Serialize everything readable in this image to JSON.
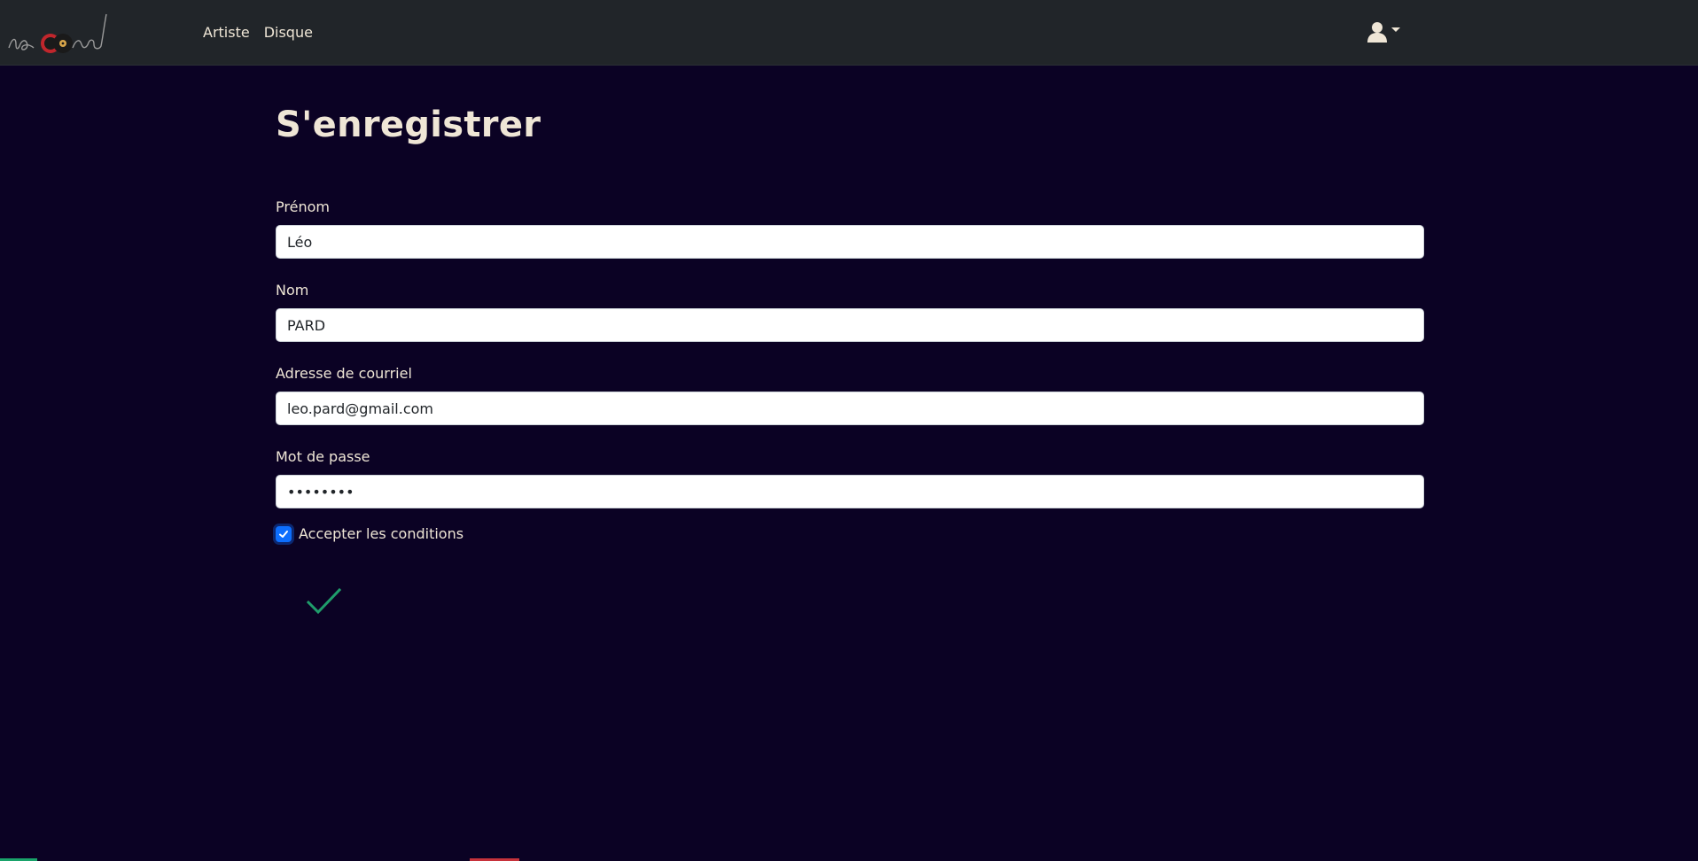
{
  "brand": {
    "logo_text": "record"
  },
  "nav": {
    "links": [
      {
        "label": "Artiste"
      },
      {
        "label": "Disque"
      }
    ],
    "user_menu_icon": "user-icon",
    "user_menu_caret": "caret-down-icon"
  },
  "page": {
    "title": "S'enregistrer"
  },
  "form": {
    "first_name": {
      "label": "Prénom",
      "value": "Léo"
    },
    "last_name": {
      "label": "Nom",
      "value": "PARD"
    },
    "email": {
      "label": "Adresse de courriel",
      "value": "leo.pard@gmail.com"
    },
    "password": {
      "label": "Mot de passe",
      "value": "••••••••"
    },
    "terms": {
      "label": "Accepter les conditions",
      "checked": true
    },
    "submit_icon": "checkmark-icon"
  },
  "colors": {
    "background": "#0b0224",
    "navbar": "#212529",
    "text": "#efe6d6",
    "accent_green": "#1f9d6b",
    "checkbox_blue": "#0d6efd"
  }
}
